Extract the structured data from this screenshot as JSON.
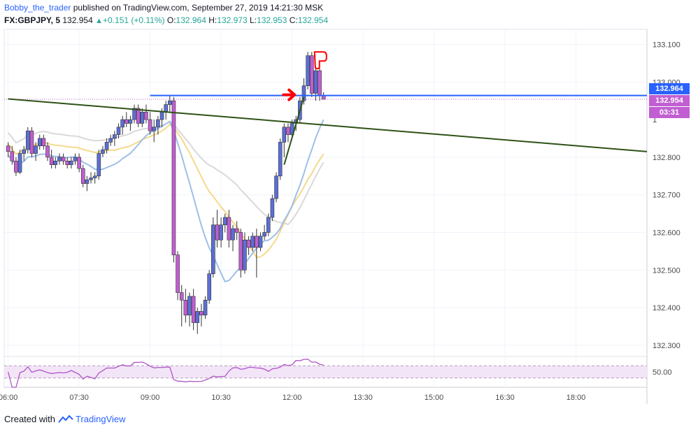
{
  "header": {
    "author": "Bobby_the_trader",
    "published_text": " published on TradingView.com, September 27, 2019 14:21:30 MSK",
    "symbol": "FX:GBPJPY, 5",
    "last_price": "132.954",
    "change_arrow": "▲",
    "change": "+0.151 (+0.11%)",
    "o_label": "O:",
    "o_value": "132.964",
    "h_label": "H:",
    "h_value": "132.973",
    "l_label": "L:",
    "l_value": "132.953",
    "c_label": "C:",
    "c_value": "132.954"
  },
  "price_axis": {
    "ticks": [
      "133.100",
      "133.000",
      "132.800",
      "132.700",
      "132.600",
      "132.500",
      "132.400",
      "132.300"
    ],
    "tags": [
      {
        "label": "132.964",
        "color": "#2962ff"
      },
      {
        "label": "132.954",
        "color": "#c15ed2"
      },
      {
        "label": "03:31",
        "color": "#c15ed2"
      }
    ],
    "partial_tick": "1"
  },
  "rsi_axis": {
    "tick": "50.00"
  },
  "time_axis": {
    "ticks": [
      "06:00",
      "07:30",
      "09:00",
      "10:30",
      "12:00",
      "13:30",
      "15:00",
      "16:30",
      "18:00"
    ]
  },
  "footer": {
    "created_with": "Created with",
    "brand": "TradingView"
  },
  "colors": {
    "bull_candle": "#5b6fd4",
    "bear_candle": "#c15ed2",
    "trendline": "#2e5216",
    "horizontal_level": "#2962ff",
    "ma_fast": "#9fbfe8",
    "ma_mid": "#f5d98a",
    "ma_slow": "#d9d9d9",
    "rsi_line": "#b155c8",
    "annotation": "#ff0000"
  },
  "chart_data": {
    "type": "candlestick",
    "symbol": "FX:GBPJPY",
    "interval": "5",
    "y_range": [
      132.27,
      133.14
    ],
    "x_range": [
      "05:55",
      "19:30"
    ],
    "horizontal_level": 132.964,
    "last_price": 132.954,
    "trendline": {
      "from": [
        "06:00",
        132.955
      ],
      "to": [
        "19:30",
        132.815
      ]
    },
    "candles": [
      [
        "06:00",
        132.83,
        132.84,
        132.8,
        132.815
      ],
      [
        "06:05",
        132.815,
        132.83,
        132.78,
        132.79
      ],
      [
        "06:10",
        132.79,
        132.8,
        132.75,
        132.76
      ],
      [
        "06:15",
        132.76,
        132.82,
        132.755,
        132.81
      ],
      [
        "06:20",
        132.81,
        132.83,
        132.79,
        132.82
      ],
      [
        "06:25",
        132.82,
        132.88,
        132.81,
        132.87
      ],
      [
        "06:30",
        132.87,
        132.88,
        132.8,
        132.81
      ],
      [
        "06:35",
        132.81,
        132.84,
        132.79,
        132.83
      ],
      [
        "06:40",
        132.83,
        132.86,
        132.82,
        132.85
      ],
      [
        "06:45",
        132.85,
        132.86,
        132.82,
        132.83
      ],
      [
        "06:50",
        132.83,
        132.84,
        132.79,
        132.8
      ],
      [
        "06:55",
        132.8,
        132.82,
        132.77,
        132.78
      ],
      [
        "07:00",
        132.78,
        132.8,
        132.77,
        132.79
      ],
      [
        "07:05",
        132.79,
        132.81,
        132.78,
        132.8
      ],
      [
        "07:10",
        132.8,
        132.81,
        132.78,
        132.79
      ],
      [
        "07:15",
        132.79,
        132.8,
        132.77,
        132.78
      ],
      [
        "07:20",
        132.78,
        132.8,
        132.77,
        132.79
      ],
      [
        "07:25",
        132.79,
        132.81,
        132.78,
        132.8
      ],
      [
        "07:30",
        132.8,
        132.81,
        132.76,
        132.77
      ],
      [
        "07:35",
        132.77,
        132.78,
        132.72,
        132.73
      ],
      [
        "07:40",
        132.73,
        132.75,
        132.71,
        132.74
      ],
      [
        "07:45",
        132.74,
        132.76,
        132.73,
        132.745
      ],
      [
        "07:50",
        132.745,
        132.76,
        132.73,
        132.75
      ],
      [
        "07:55",
        132.75,
        132.82,
        132.74,
        132.81
      ],
      [
        "08:00",
        132.81,
        132.83,
        132.8,
        132.82
      ],
      [
        "08:05",
        132.82,
        132.85,
        132.81,
        132.84
      ],
      [
        "08:10",
        132.84,
        132.86,
        132.83,
        132.85
      ],
      [
        "08:15",
        132.85,
        132.87,
        132.83,
        132.86
      ],
      [
        "08:20",
        132.86,
        132.89,
        132.85,
        132.88
      ],
      [
        "08:25",
        132.88,
        132.91,
        132.86,
        132.9
      ],
      [
        "08:30",
        132.9,
        132.92,
        132.88,
        132.89
      ],
      [
        "08:35",
        132.89,
        132.91,
        132.87,
        132.9
      ],
      [
        "08:40",
        132.9,
        132.94,
        132.89,
        132.93
      ],
      [
        "08:45",
        132.93,
        132.94,
        132.88,
        132.89
      ],
      [
        "08:50",
        132.89,
        132.93,
        132.88,
        132.92
      ],
      [
        "08:55",
        132.92,
        132.94,
        132.89,
        132.9
      ],
      [
        "09:00",
        132.9,
        132.92,
        132.86,
        132.87
      ],
      [
        "09:05",
        132.87,
        132.9,
        132.84,
        132.88
      ],
      [
        "09:10",
        132.88,
        132.91,
        132.86,
        132.9
      ],
      [
        "09:15",
        132.9,
        132.93,
        132.88,
        132.92
      ],
      [
        "09:20",
        132.92,
        132.95,
        132.9,
        132.94
      ],
      [
        "09:25",
        132.94,
        132.965,
        132.92,
        132.95
      ],
      [
        "09:30",
        132.95,
        132.96,
        132.52,
        132.54
      ],
      [
        "09:35",
        132.54,
        132.55,
        132.42,
        132.44
      ],
      [
        "09:40",
        132.44,
        132.46,
        132.35,
        132.42
      ],
      [
        "09:45",
        132.42,
        132.45,
        132.36,
        132.38
      ],
      [
        "09:50",
        132.38,
        132.44,
        132.35,
        132.43
      ],
      [
        "09:55",
        132.43,
        132.45,
        132.34,
        132.36
      ],
      [
        "10:00",
        132.36,
        132.4,
        132.33,
        132.39
      ],
      [
        "10:05",
        132.39,
        132.41,
        132.35,
        132.38
      ],
      [
        "10:10",
        132.38,
        132.43,
        132.37,
        132.42
      ],
      [
        "10:15",
        132.42,
        132.5,
        132.41,
        132.49
      ],
      [
        "10:20",
        132.49,
        132.64,
        132.48,
        132.62
      ],
      [
        "10:25",
        132.62,
        132.66,
        132.56,
        132.58
      ],
      [
        "10:30",
        132.58,
        132.64,
        132.56,
        132.62
      ],
      [
        "10:35",
        132.62,
        132.65,
        132.6,
        132.64
      ],
      [
        "10:40",
        132.64,
        132.66,
        132.56,
        132.58
      ],
      [
        "10:45",
        132.58,
        132.62,
        132.55,
        132.61
      ],
      [
        "10:50",
        132.61,
        132.63,
        132.58,
        132.6
      ],
      [
        "10:55",
        132.6,
        132.61,
        132.48,
        132.5
      ],
      [
        "11:00",
        132.5,
        132.6,
        132.49,
        132.58
      ],
      [
        "11:05",
        132.58,
        132.59,
        132.54,
        132.56
      ],
      [
        "11:10",
        132.56,
        132.6,
        132.55,
        132.59
      ],
      [
        "11:15",
        132.59,
        132.61,
        132.48,
        132.56
      ],
      [
        "11:20",
        132.56,
        132.6,
        132.55,
        132.59
      ],
      [
        "11:25",
        132.59,
        132.62,
        132.58,
        132.6
      ],
      [
        "11:30",
        132.6,
        132.65,
        132.59,
        132.64
      ],
      [
        "11:35",
        132.64,
        132.7,
        132.63,
        132.69
      ],
      [
        "11:40",
        132.69,
        132.76,
        132.68,
        132.75
      ],
      [
        "11:45",
        132.75,
        132.85,
        132.74,
        132.84
      ],
      [
        "11:50",
        132.84,
        132.89,
        132.8,
        132.88
      ],
      [
        "11:55",
        132.88,
        132.89,
        132.84,
        132.86
      ],
      [
        "12:00",
        132.86,
        132.9,
        132.85,
        132.89
      ],
      [
        "12:05",
        132.89,
        132.91,
        132.87,
        132.9
      ],
      [
        "12:10",
        132.9,
        132.96,
        132.89,
        132.95
      ],
      [
        "12:15",
        132.95,
        133.01,
        132.94,
        132.99
      ],
      [
        "12:20",
        132.99,
        133.08,
        132.98,
        133.07
      ],
      [
        "12:25",
        133.07,
        133.08,
        132.96,
        132.97
      ],
      [
        "12:30",
        132.97,
        133.04,
        132.95,
        133.03
      ],
      [
        "12:35",
        133.03,
        133.04,
        132.95,
        132.964
      ],
      [
        "12:40",
        132.964,
        132.973,
        132.953,
        132.954
      ]
    ],
    "rsi": {
      "level": 50,
      "band": [
        30,
        70
      ]
    }
  }
}
